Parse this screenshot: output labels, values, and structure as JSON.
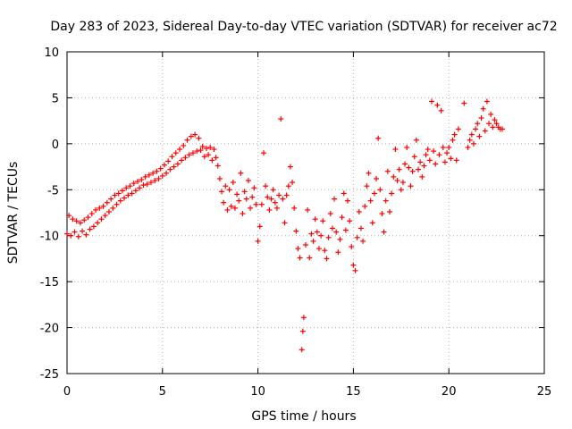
{
  "chart_data": {
    "type": "scatter",
    "title": "Day 283 of 2023, Sidereal Day-to-day VTEC variation (SDTVAR) for receiver ac72",
    "xlabel": "GPS time / hours",
    "ylabel": "SDTVAR / TECUs",
    "xlim": [
      0,
      25
    ],
    "ylim": [
      -25,
      10
    ],
    "xticks": [
      0,
      5,
      10,
      15,
      20,
      25
    ],
    "xtick_labels": [
      "0",
      "5",
      "10",
      "15",
      "20",
      "25"
    ],
    "yticks": [
      -25,
      -20,
      -15,
      -10,
      -5,
      0,
      5,
      10
    ],
    "ytick_labels": [
      "-25",
      "-20",
      "-15",
      "-10",
      "-5",
      "0",
      "5",
      "10"
    ],
    "grid": true,
    "marker": "+",
    "color": "#ff0000",
    "series": [
      {
        "name": "SDTVAR",
        "points": [
          [
            0.0,
            -9.8
          ],
          [
            0.1,
            -7.8
          ],
          [
            0.2,
            -10.0
          ],
          [
            0.3,
            -8.2
          ],
          [
            0.4,
            -9.6
          ],
          [
            0.5,
            -8.4
          ],
          [
            0.6,
            -10.1
          ],
          [
            0.7,
            -8.6
          ],
          [
            0.8,
            -9.5
          ],
          [
            0.9,
            -8.3
          ],
          [
            1.0,
            -9.9
          ],
          [
            1.1,
            -8.0
          ],
          [
            1.2,
            -9.3
          ],
          [
            1.3,
            -7.6
          ],
          [
            1.4,
            -9.0
          ],
          [
            1.5,
            -7.2
          ],
          [
            1.6,
            -8.6
          ],
          [
            1.7,
            -7.0
          ],
          [
            1.8,
            -8.2
          ],
          [
            1.9,
            -6.8
          ],
          [
            2.0,
            -7.8
          ],
          [
            2.1,
            -6.4
          ],
          [
            2.2,
            -7.4
          ],
          [
            2.3,
            -6.0
          ],
          [
            2.4,
            -7.0
          ],
          [
            2.5,
            -5.6
          ],
          [
            2.6,
            -6.6
          ],
          [
            2.7,
            -5.4
          ],
          [
            2.8,
            -6.2
          ],
          [
            2.9,
            -5.1
          ],
          [
            3.0,
            -5.9
          ],
          [
            3.1,
            -4.8
          ],
          [
            3.2,
            -5.6
          ],
          [
            3.3,
            -4.6
          ],
          [
            3.4,
            -5.4
          ],
          [
            3.5,
            -4.3
          ],
          [
            3.6,
            -5.1
          ],
          [
            3.7,
            -4.1
          ],
          [
            3.8,
            -4.8
          ],
          [
            3.9,
            -3.9
          ],
          [
            4.0,
            -4.5
          ],
          [
            4.1,
            -3.6
          ],
          [
            4.2,
            -4.4
          ],
          [
            4.3,
            -3.4
          ],
          [
            4.4,
            -4.2
          ],
          [
            4.5,
            -3.2
          ],
          [
            4.6,
            -4.0
          ],
          [
            4.7,
            -3.0
          ],
          [
            4.8,
            -3.8
          ],
          [
            4.9,
            -2.7
          ],
          [
            5.0,
            -3.5
          ],
          [
            5.1,
            -2.3
          ],
          [
            5.2,
            -3.2
          ],
          [
            5.3,
            -1.9
          ],
          [
            5.4,
            -2.8
          ],
          [
            5.5,
            -1.4
          ],
          [
            5.6,
            -2.5
          ],
          [
            5.7,
            -1.0
          ],
          [
            5.8,
            -2.2
          ],
          [
            5.9,
            -0.6
          ],
          [
            6.0,
            -1.8
          ],
          [
            6.1,
            -0.2
          ],
          [
            6.2,
            -1.5
          ],
          [
            6.3,
            0.4
          ],
          [
            6.4,
            -1.2
          ],
          [
            6.5,
            0.8
          ],
          [
            6.6,
            -1.0
          ],
          [
            6.7,
            1.0
          ],
          [
            6.8,
            -0.8
          ],
          [
            6.9,
            0.6
          ],
          [
            7.0,
            -0.7
          ],
          [
            7.1,
            -0.3
          ],
          [
            7.2,
            -1.4
          ],
          [
            7.3,
            -0.5
          ],
          [
            7.4,
            -1.2
          ],
          [
            7.5,
            -0.4
          ],
          [
            7.6,
            -1.8
          ],
          [
            7.7,
            -0.6
          ],
          [
            7.8,
            -1.5
          ],
          [
            7.9,
            -2.4
          ],
          [
            8.0,
            -3.8
          ],
          [
            8.1,
            -5.2
          ],
          [
            8.2,
            -6.4
          ],
          [
            8.3,
            -4.6
          ],
          [
            8.4,
            -7.2
          ],
          [
            8.5,
            -5.0
          ],
          [
            8.6,
            -6.8
          ],
          [
            8.7,
            -4.2
          ],
          [
            8.8,
            -7.0
          ],
          [
            8.9,
            -5.5
          ],
          [
            9.0,
            -6.2
          ],
          [
            9.1,
            -3.2
          ],
          [
            9.2,
            -7.6
          ],
          [
            9.3,
            -5.2
          ],
          [
            9.4,
            -6.0
          ],
          [
            9.5,
            -4.0
          ],
          [
            9.6,
            -7.0
          ],
          [
            9.7,
            -5.8
          ],
          [
            9.8,
            -4.8
          ],
          [
            9.9,
            -6.6
          ],
          [
            10.0,
            -10.6
          ],
          [
            10.1,
            -9.0
          ],
          [
            10.2,
            -6.6
          ],
          [
            10.3,
            -1.0
          ],
          [
            10.4,
            -4.6
          ],
          [
            10.5,
            -5.8
          ],
          [
            10.6,
            -7.2
          ],
          [
            10.7,
            -6.0
          ],
          [
            10.8,
            -5.0
          ],
          [
            10.9,
            -6.4
          ],
          [
            11.0,
            -7.0
          ],
          [
            11.1,
            -5.6
          ],
          [
            11.2,
            2.7
          ],
          [
            11.3,
            -6.0
          ],
          [
            11.4,
            -8.6
          ],
          [
            11.5,
            -5.6
          ],
          [
            11.6,
            -4.6
          ],
          [
            11.7,
            -2.5
          ],
          [
            11.8,
            -4.2
          ],
          [
            11.9,
            -7.0
          ],
          [
            12.0,
            -9.5
          ],
          [
            12.1,
            -11.4
          ],
          [
            12.2,
            -12.4
          ],
          [
            12.3,
            -22.4
          ],
          [
            12.35,
            -20.4
          ],
          [
            12.4,
            -18.9
          ],
          [
            12.5,
            -11.0
          ],
          [
            12.6,
            -7.2
          ],
          [
            12.7,
            -12.4
          ],
          [
            12.8,
            -9.8
          ],
          [
            12.9,
            -10.6
          ],
          [
            13.0,
            -8.2
          ],
          [
            13.1,
            -9.6
          ],
          [
            13.2,
            -11.4
          ],
          [
            13.3,
            -10.0
          ],
          [
            13.4,
            -8.4
          ],
          [
            13.5,
            -11.6
          ],
          [
            13.6,
            -12.5
          ],
          [
            13.7,
            -10.2
          ],
          [
            13.8,
            -7.6
          ],
          [
            13.9,
            -9.2
          ],
          [
            14.0,
            -6.0
          ],
          [
            14.1,
            -9.6
          ],
          [
            14.2,
            -11.8
          ],
          [
            14.3,
            -10.4
          ],
          [
            14.4,
            -8.0
          ],
          [
            14.5,
            -5.4
          ],
          [
            14.6,
            -9.4
          ],
          [
            14.7,
            -6.2
          ],
          [
            14.8,
            -8.4
          ],
          [
            14.9,
            -11.2
          ],
          [
            15.0,
            -13.2
          ],
          [
            15.1,
            -13.8
          ],
          [
            15.2,
            -10.2
          ],
          [
            15.3,
            -7.4
          ],
          [
            15.4,
            -9.2
          ],
          [
            15.5,
            -10.6
          ],
          [
            15.6,
            -6.8
          ],
          [
            15.7,
            -4.6
          ],
          [
            15.8,
            -3.2
          ],
          [
            15.9,
            -6.2
          ],
          [
            16.0,
            -8.6
          ],
          [
            16.1,
            -5.4
          ],
          [
            16.2,
            -3.8
          ],
          [
            16.3,
            0.6
          ],
          [
            16.4,
            -5.0
          ],
          [
            16.5,
            -7.6
          ],
          [
            16.6,
            -9.6
          ],
          [
            16.7,
            -6.2
          ],
          [
            16.8,
            -3.0
          ],
          [
            16.9,
            -7.4
          ],
          [
            17.0,
            -5.4
          ],
          [
            17.1,
            -3.6
          ],
          [
            17.2,
            -0.6
          ],
          [
            17.3,
            -4.0
          ],
          [
            17.4,
            -2.8
          ],
          [
            17.5,
            -5.0
          ],
          [
            17.6,
            -4.2
          ],
          [
            17.7,
            -2.2
          ],
          [
            17.8,
            -0.4
          ],
          [
            17.9,
            -2.6
          ],
          [
            18.0,
            -4.6
          ],
          [
            18.1,
            -3.0
          ],
          [
            18.2,
            -1.4
          ],
          [
            18.3,
            0.4
          ],
          [
            18.4,
            -2.8
          ],
          [
            18.5,
            -2.0
          ],
          [
            18.6,
            -3.6
          ],
          [
            18.7,
            -2.4
          ],
          [
            18.8,
            -1.2
          ],
          [
            18.9,
            -0.6
          ],
          [
            19.0,
            -1.8
          ],
          [
            19.1,
            4.6
          ],
          [
            19.2,
            -0.8
          ],
          [
            19.3,
            -2.2
          ],
          [
            19.4,
            4.2
          ],
          [
            19.5,
            -1.2
          ],
          [
            19.6,
            3.6
          ],
          [
            19.7,
            -0.4
          ],
          [
            19.8,
            -2.0
          ],
          [
            19.9,
            -1.0
          ],
          [
            20.0,
            -0.4
          ],
          [
            20.1,
            -1.6
          ],
          [
            20.2,
            0.4
          ],
          [
            20.3,
            1.0
          ],
          [
            20.4,
            -1.8
          ],
          [
            20.5,
            1.6
          ],
          [
            20.8,
            4.4
          ],
          [
            21.0,
            -0.4
          ],
          [
            21.1,
            0.4
          ],
          [
            21.2,
            1.0
          ],
          [
            21.3,
            0.0
          ],
          [
            21.4,
            1.6
          ],
          [
            21.5,
            2.2
          ],
          [
            21.6,
            0.8
          ],
          [
            21.7,
            2.8
          ],
          [
            21.8,
            3.8
          ],
          [
            21.9,
            1.4
          ],
          [
            22.0,
            4.6
          ],
          [
            22.1,
            2.2
          ],
          [
            22.2,
            3.2
          ],
          [
            22.3,
            1.8
          ],
          [
            22.4,
            2.6
          ],
          [
            22.5,
            2.2
          ],
          [
            22.6,
            1.8
          ],
          [
            22.7,
            1.6
          ],
          [
            22.8,
            1.6
          ]
        ]
      }
    ]
  }
}
